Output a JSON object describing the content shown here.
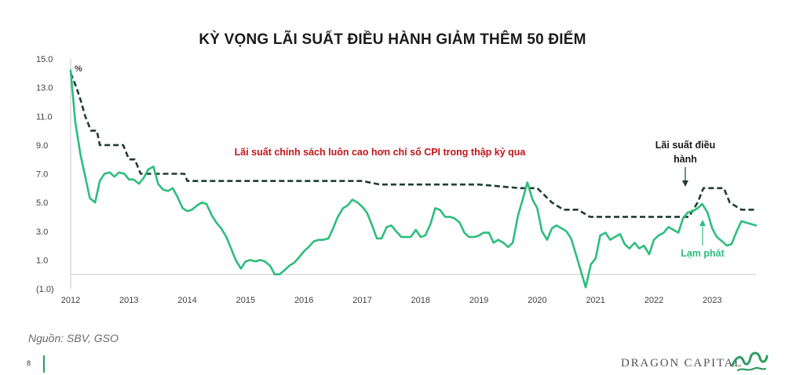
{
  "title": "KỲ VỌNG LÃI SUẤT ĐIỀU HÀNH GIẢM THÊM 50 ĐIỂM",
  "source": "Nguồn: SBV, GSO",
  "page_number": "8",
  "brand": "DRAGON CAPITAL",
  "logo_icon": "dragon-logo-icon",
  "colors": {
    "policy_rate": "#1f3d2e",
    "inflation": "#2dbd7e",
    "note": "#c0161c",
    "accent": "#2e9c64"
  },
  "chart_data": {
    "type": "line",
    "title": "KỲ VỌNG LÃI SUẤT ĐIỀU HÀNH GIẢM THÊM 50 ĐIỂM",
    "unit": "%",
    "x_ticks": [
      "2012",
      "2013",
      "2014",
      "2015",
      "2016",
      "2017",
      "2018",
      "2019",
      "2020",
      "2021",
      "2022",
      "2023"
    ],
    "y_ticks": [
      "15.0",
      "13.0",
      "11.0",
      "9.0",
      "7.0",
      "5.0",
      "3.0",
      "1.0",
      "(1.0)"
    ],
    "xlim": [
      2012.0,
      2023.75
    ],
    "ylim": [
      -1,
      15
    ],
    "grid": false,
    "annotations": {
      "note": "Lãi suất chính sách luôn cao hơn chỉ số CPI trong thập kỷ qua",
      "policy_label_line1": "Lãi suất điều",
      "policy_label_line2": "hành",
      "inflation_label": "Lạm phát"
    },
    "series": [
      {
        "name": "Lãi suất điều hành",
        "style": "dashed",
        "x": [
          2012.0,
          2012.1,
          2012.18,
          2012.25,
          2012.35,
          2012.45,
          2012.5,
          2012.9,
          2013.0,
          2013.1,
          2013.2,
          2013.4,
          2013.95,
          2014.0,
          2016.0,
          2017.0,
          2017.3,
          2018.5,
          2019.0,
          2019.7,
          2020.0,
          2020.25,
          2020.45,
          2020.7,
          2020.9,
          2021.0,
          2022.0,
          2022.6,
          2022.75,
          2022.85,
          2023.2,
          2023.3,
          2023.5,
          2023.75
        ],
        "y": [
          14.0,
          13.0,
          12.0,
          11.0,
          10.0,
          10.0,
          9.0,
          9.0,
          8.0,
          8.0,
          7.0,
          7.0,
          7.0,
          6.5,
          6.5,
          6.5,
          6.25,
          6.25,
          6.25,
          6.0,
          6.0,
          5.0,
          4.5,
          4.5,
          4.0,
          4.0,
          4.0,
          4.0,
          5.0,
          6.0,
          6.0,
          5.0,
          4.5,
          4.5
        ]
      },
      {
        "name": "Lạm phát",
        "style": "solid",
        "x": [
          2012.0,
          2012.08,
          2012.17,
          2012.25,
          2012.33,
          2012.42,
          2012.5,
          2012.58,
          2012.67,
          2012.75,
          2012.83,
          2012.92,
          2013.0,
          2013.08,
          2013.17,
          2013.25,
          2013.33,
          2013.42,
          2013.5,
          2013.58,
          2013.67,
          2013.75,
          2013.83,
          2013.92,
          2014.0,
          2014.08,
          2014.17,
          2014.25,
          2014.33,
          2014.42,
          2014.5,
          2014.58,
          2014.67,
          2014.75,
          2014.83,
          2014.92,
          2015.0,
          2015.08,
          2015.17,
          2015.25,
          2015.33,
          2015.42,
          2015.5,
          2015.58,
          2015.67,
          2015.75,
          2015.83,
          2015.92,
          2016.0,
          2016.08,
          2016.17,
          2016.25,
          2016.33,
          2016.42,
          2016.5,
          2016.58,
          2016.67,
          2016.75,
          2016.83,
          2016.92,
          2017.0,
          2017.08,
          2017.17,
          2017.25,
          2017.33,
          2017.42,
          2017.5,
          2017.58,
          2017.67,
          2017.75,
          2017.83,
          2017.92,
          2018.0,
          2018.08,
          2018.17,
          2018.25,
          2018.33,
          2018.42,
          2018.5,
          2018.58,
          2018.67,
          2018.75,
          2018.83,
          2018.92,
          2019.0,
          2019.08,
          2019.17,
          2019.25,
          2019.33,
          2019.42,
          2019.5,
          2019.58,
          2019.67,
          2019.75,
          2019.83,
          2019.92,
          2020.0,
          2020.08,
          2020.17,
          2020.25,
          2020.33,
          2020.42,
          2020.5,
          2020.58,
          2020.67,
          2020.75,
          2020.83,
          2020.92,
          2021.0,
          2021.08,
          2021.17,
          2021.25,
          2021.33,
          2021.42,
          2021.5,
          2021.58,
          2021.67,
          2021.75,
          2021.83,
          2021.92,
          2022.0,
          2022.08,
          2022.17,
          2022.25,
          2022.33,
          2022.42,
          2022.5,
          2022.58,
          2022.67,
          2022.75,
          2022.83,
          2022.92,
          2023.0,
          2023.08,
          2023.17,
          2023.25,
          2023.33,
          2023.42,
          2023.5,
          2023.58,
          2023.67,
          2023.75
        ],
        "y": [
          14.2,
          10.6,
          8.3,
          6.8,
          5.3,
          5.0,
          6.5,
          7.0,
          7.1,
          6.8,
          7.1,
          7.0,
          6.6,
          6.6,
          6.3,
          6.7,
          7.3,
          7.5,
          6.3,
          5.9,
          5.8,
          6.0,
          5.4,
          4.6,
          4.4,
          4.5,
          4.8,
          5.0,
          4.9,
          4.1,
          3.6,
          3.2,
          2.6,
          1.8,
          1.0,
          0.4,
          0.9,
          1.0,
          0.9,
          1.0,
          0.9,
          0.6,
          0.0,
          0.0,
          0.3,
          0.6,
          0.8,
          1.2,
          1.6,
          1.9,
          2.3,
          2.4,
          2.4,
          2.5,
          3.2,
          4.0,
          4.6,
          4.8,
          5.2,
          5.0,
          4.7,
          4.3,
          3.4,
          2.5,
          2.5,
          3.3,
          3.4,
          3.0,
          2.6,
          2.6,
          2.6,
          3.1,
          2.6,
          2.7,
          3.5,
          4.6,
          4.5,
          4.0,
          4.0,
          3.9,
          3.6,
          2.9,
          2.6,
          2.6,
          2.7,
          2.9,
          2.9,
          2.2,
          2.4,
          2.2,
          1.9,
          2.2,
          4.1,
          5.2,
          6.4,
          5.2,
          4.6,
          3.0,
          2.4,
          3.2,
          3.4,
          3.2,
          3.0,
          2.5,
          1.3,
          0.2,
          -0.9,
          0.7,
          1.1,
          2.7,
          2.9,
          2.4,
          2.6,
          2.8,
          2.1,
          1.8,
          2.2,
          1.8,
          2.0,
          1.4,
          2.4,
          2.7,
          2.9,
          3.3,
          3.1,
          2.9,
          3.9,
          4.3,
          4.4,
          4.6,
          4.9,
          4.3,
          3.2,
          2.6,
          2.3,
          2.0,
          2.1,
          3.0,
          3.7,
          3.6,
          3.5,
          3.4
        ]
      }
    ]
  }
}
